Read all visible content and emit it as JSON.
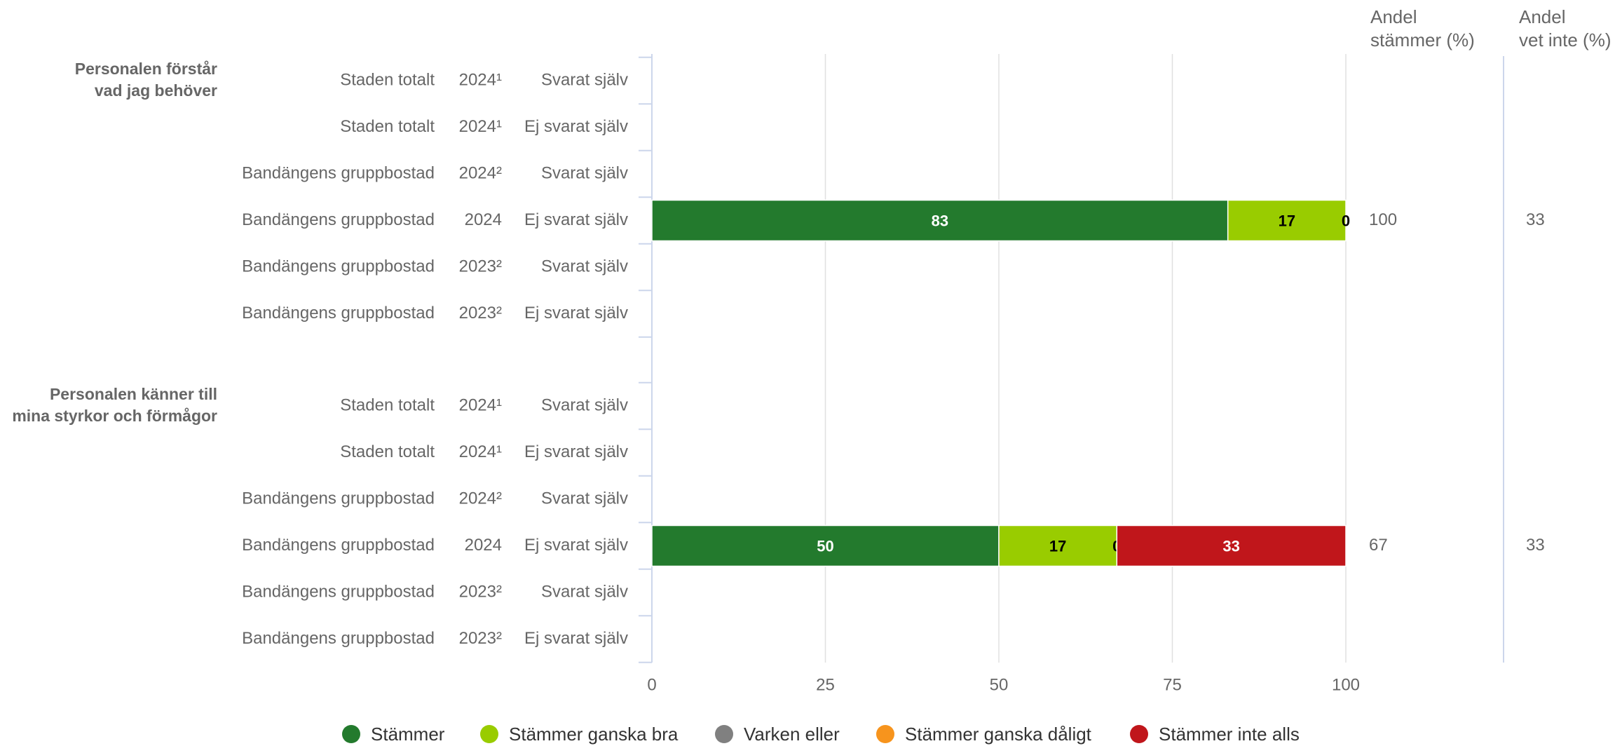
{
  "chart_data": {
    "type": "stacked-bar-horizontal",
    "groups": [
      {
        "label": [
          "Personalen förstår",
          "vad jag behöver"
        ],
        "rows": [
          {
            "unit": "Staden totalt",
            "year": "2024¹",
            "respondent": "Svarat själv"
          },
          {
            "unit": "Staden totalt",
            "year": "2024¹",
            "respondent": "Ej svarat själv"
          },
          {
            "unit": "Bandängens gruppbostad",
            "year": "2024²",
            "respondent": "Svarat själv"
          },
          {
            "unit": "Bandängens gruppbostad",
            "year": "2024",
            "respondent": "Ej svarat själv"
          },
          {
            "unit": "Bandängens gruppbostad",
            "year": "2023²",
            "respondent": "Svarat själv"
          },
          {
            "unit": "Bandängens gruppbostad",
            "year": "2023²",
            "respondent": "Ej svarat själv"
          }
        ]
      },
      {
        "label": [
          "Personalen känner till",
          "mina styrkor och förmågor"
        ],
        "rows": [
          {
            "unit": "Staden totalt",
            "year": "2024¹",
            "respondent": "Svarat själv"
          },
          {
            "unit": "Staden totalt",
            "year": "2024¹",
            "respondent": "Ej svarat själv"
          },
          {
            "unit": "Bandängens gruppbostad",
            "year": "2024²",
            "respondent": "Svarat själv"
          },
          {
            "unit": "Bandängens gruppbostad",
            "year": "2024",
            "respondent": "Ej svarat själv"
          },
          {
            "unit": "Bandängens gruppbostad",
            "year": "2023²",
            "respondent": "Svarat själv"
          },
          {
            "unit": "Bandängens gruppbostad",
            "year": "2023²",
            "respondent": "Ej svarat själv"
          }
        ]
      }
    ],
    "series": [
      {
        "name": "Stämmer",
        "color": "#237a2d",
        "values": [
          null,
          null,
          null,
          83,
          null,
          null,
          null,
          null,
          null,
          50,
          null,
          null
        ]
      },
      {
        "name": "Stämmer ganska bra",
        "color": "#99cc00",
        "values": [
          null,
          null,
          null,
          17,
          null,
          null,
          null,
          null,
          null,
          17,
          null,
          null
        ]
      },
      {
        "name": "Varken eller",
        "color": "#808080",
        "values": [
          null,
          null,
          null,
          0,
          null,
          null,
          null,
          null,
          null,
          0,
          null,
          null
        ]
      },
      {
        "name": "Stämmer ganska dåligt",
        "color": "#f7941d",
        "values": [
          null,
          null,
          null,
          null,
          null,
          null,
          null,
          null,
          null,
          null,
          null,
          null
        ]
      },
      {
        "name": "Stämmer inte alls",
        "color": "#c0161b",
        "values": [
          null,
          null,
          null,
          null,
          null,
          null,
          null,
          null,
          null,
          33,
          null,
          null
        ]
      }
    ],
    "columns": [
      {
        "title": [
          "Andel",
          "stämmer (%)"
        ],
        "values": [
          null,
          null,
          null,
          100,
          null,
          null,
          null,
          null,
          null,
          67,
          null,
          null
        ]
      },
      {
        "title": [
          "Andel",
          "vet inte (%)"
        ],
        "values": [
          null,
          null,
          null,
          33,
          null,
          null,
          null,
          null,
          null,
          33,
          null,
          null
        ]
      }
    ],
    "xlim": [
      0,
      100
    ],
    "xticks": [
      0,
      25,
      50,
      75,
      100
    ],
    "grid": true,
    "legend": "bottom"
  }
}
